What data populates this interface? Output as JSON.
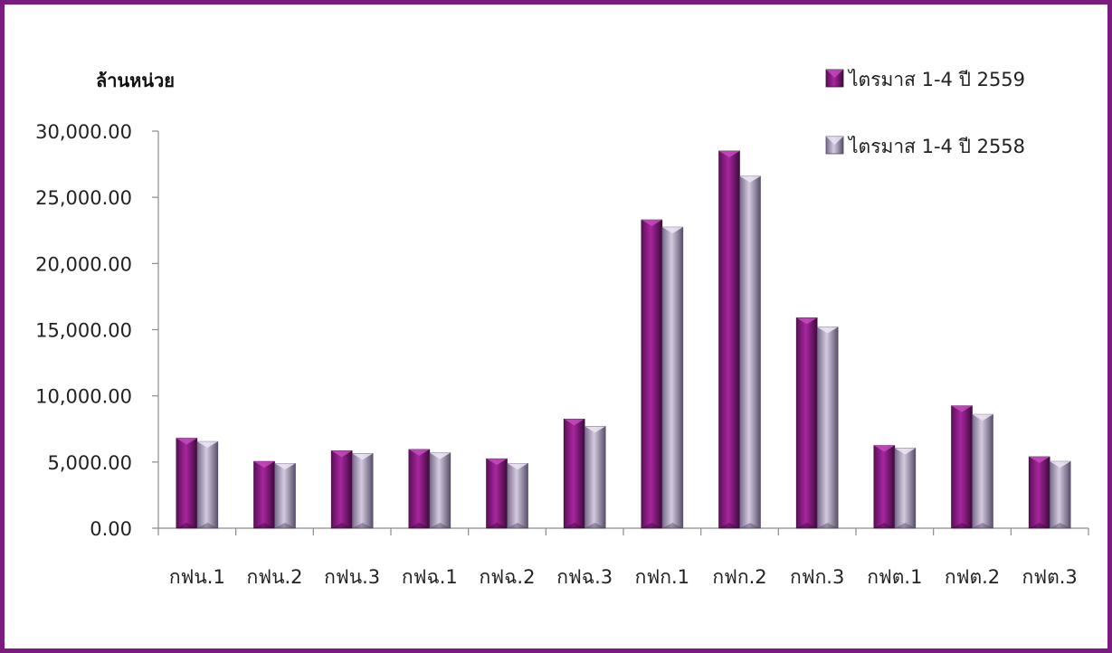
{
  "chart_data": {
    "type": "bar",
    "ylabel": "ล้านหน่วย",
    "xlabel": "",
    "ylim": [
      0,
      30000
    ],
    "ytick_values": [
      0,
      5000,
      10000,
      15000,
      20000,
      25000,
      30000
    ],
    "ytick_labels": [
      "0.00",
      "5,000.00",
      "10,000.00",
      "15,000.00",
      "20,000.00",
      "25,000.00",
      "30,000.00"
    ],
    "categories": [
      "กฟน.1",
      "กฟน.2",
      "กฟน.3",
      "กฟฉ.1",
      "กฟฉ.2",
      "กฟฉ.3",
      "กฟก.1",
      "กฟก.2",
      "กฟก.3",
      "กฟต.1",
      "กฟต.2",
      "กฟต.3"
    ],
    "series": [
      {
        "name": "ไตรมาส 1-4 ปี 2559",
        "color": "#8a1a82",
        "values": [
          6800,
          5050,
          5850,
          5950,
          5250,
          8250,
          23300,
          28500,
          15900,
          6250,
          9250,
          5400
        ]
      },
      {
        "name": "ไตรมาส 1-4 ปี 2558",
        "color": "#a89bb5",
        "values": [
          6550,
          4900,
          5650,
          5700,
          4900,
          7700,
          22750,
          26600,
          15200,
          6050,
          8600,
          5050
        ]
      }
    ],
    "grid": false,
    "legend_position": "top-right"
  }
}
